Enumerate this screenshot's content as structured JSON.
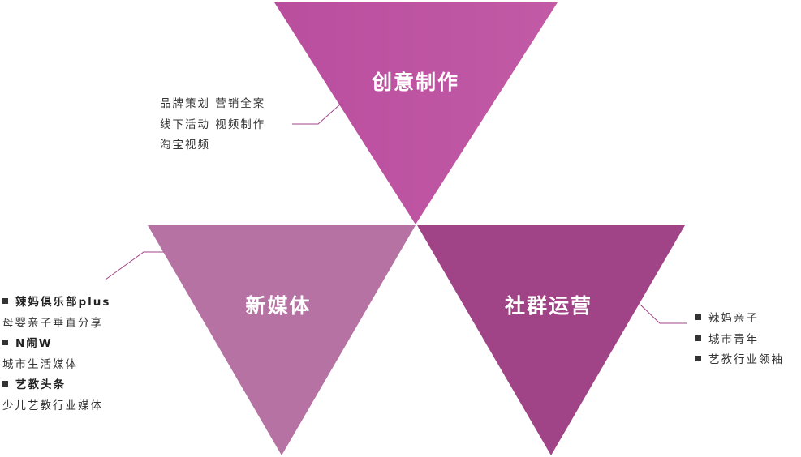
{
  "diagram": {
    "colors": {
      "top_light": "#b94e9e",
      "top_dark": "#c25aa6",
      "left": "#b572a2",
      "right": "#a04387",
      "connector": "#a04387",
      "text": "#333333"
    },
    "triangles": [
      {
        "id": "top",
        "title": "创意制作"
      },
      {
        "id": "left",
        "title": "新媒体"
      },
      {
        "id": "right",
        "title": "社群运营"
      }
    ],
    "top_items": [
      "品牌策划  营销全案",
      "线下活动  视频制作",
      "淘宝视频"
    ],
    "left_items": [
      {
        "text": "辣妈俱乐部plus",
        "bullet": true,
        "bold": true
      },
      {
        "text": "母婴亲子垂直分享",
        "bullet": false,
        "bold": false
      },
      {
        "text": "N闹W",
        "bullet": true,
        "bold": true
      },
      {
        "text": "城市生活媒体",
        "bullet": false,
        "bold": false
      },
      {
        "text": "艺教头条",
        "bullet": true,
        "bold": true
      },
      {
        "text": "少儿艺教行业媒体",
        "bullet": false,
        "bold": false
      }
    ],
    "right_items": [
      {
        "text": "辣妈亲子",
        "bullet": true
      },
      {
        "text": "城市青年",
        "bullet": true
      },
      {
        "text": "艺教行业领袖",
        "bullet": true
      }
    ]
  }
}
